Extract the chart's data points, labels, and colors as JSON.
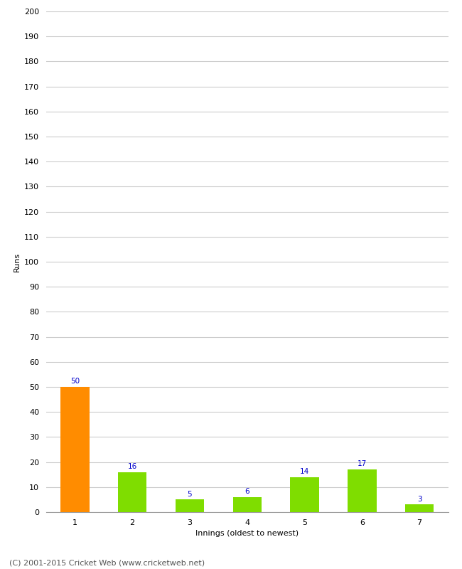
{
  "xlabel": "Innings (oldest to newest)",
  "ylabel": "Runs",
  "categories": [
    1,
    2,
    3,
    4,
    5,
    6,
    7
  ],
  "values": [
    50,
    16,
    5,
    6,
    14,
    17,
    3
  ],
  "bar_colors": [
    "#FF8C00",
    "#7FDD00",
    "#7FDD00",
    "#7FDD00",
    "#7FDD00",
    "#7FDD00",
    "#7FDD00"
  ],
  "ylim": [
    0,
    200
  ],
  "yticks": [
    0,
    10,
    20,
    30,
    40,
    50,
    60,
    70,
    80,
    90,
    100,
    110,
    120,
    130,
    140,
    150,
    160,
    170,
    180,
    190,
    200
  ],
  "label_color": "#0000CC",
  "label_fontsize": 7.5,
  "axis_label_fontsize": 8,
  "tick_fontsize": 8,
  "ylabel_fontsize": 8,
  "footer": "(C) 2001-2015 Cricket Web (www.cricketweb.net)",
  "footer_fontsize": 8,
  "background_color": "#FFFFFF",
  "grid_color": "#CCCCCC",
  "bar_width": 0.5
}
